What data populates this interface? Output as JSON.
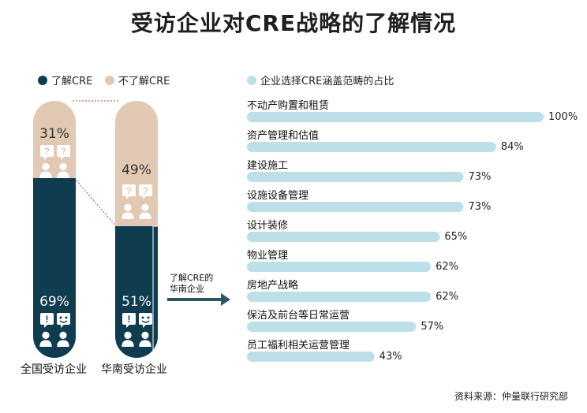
{
  "title": "受访企业对CRE战略的了解情况",
  "legend_left": [
    {
      "label": "了解CRE",
      "color": "#0f3d4f"
    },
    {
      "label": "不了解CRE",
      "color": "#e2c9b4"
    }
  ],
  "legend_right": {
    "label": "企业选择CRE涵盖范畴的占比",
    "color": "#bde0e8"
  },
  "pills": [
    {
      "name": "全国受访企业",
      "understand_pct": 69,
      "not_understand_pct": 31,
      "understand_text": "69%",
      "not_text": "31%"
    },
    {
      "name": "华南受访企业",
      "understand_pct": 51,
      "not_understand_pct": 49,
      "understand_text": "51%",
      "not_text": "49%"
    }
  ],
  "arrow_label_line1": "了解CRE的",
  "arrow_label_line2": "华南企业",
  "chart_data": {
    "type": "bar",
    "title": "企业选择CRE涵盖范畴的占比",
    "categories": [
      "不动产购置和租赁",
      "资产管理和估值",
      "建设施工",
      "设施设备管理",
      "设计装修",
      "物业管理",
      "房地产战略",
      "保洁及前台等日常运营",
      "员工福利相关运营管理"
    ],
    "values": [
      100,
      84,
      73,
      73,
      65,
      62,
      62,
      57,
      43
    ],
    "value_labels": [
      "100%",
      "84%",
      "73%",
      "73%",
      "65%",
      "62%",
      "62%",
      "57%",
      "43%"
    ],
    "ylim": [
      0,
      100
    ],
    "bar_color": "#bde0e8"
  },
  "source": "资料来源：仲量联行研究部",
  "colors": {
    "dark": "#0f3d4f",
    "light": "#e2c9b4",
    "bar": "#bde0e8"
  }
}
